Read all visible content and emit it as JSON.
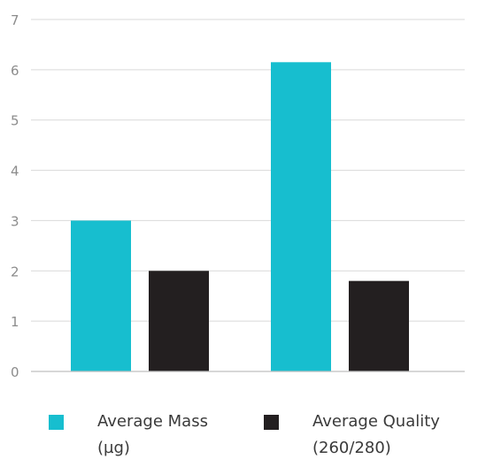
{
  "chart_data": {
    "type": "bar",
    "categories": [
      "",
      ""
    ],
    "series": [
      {
        "name_line1": "Average Mass",
        "name_line2": "(µg)",
        "color": "#17becf",
        "values": [
          3.0,
          6.15
        ]
      },
      {
        "name_line1": "Average Quality",
        "name_line2": "(260/280)",
        "color": "#231f20",
        "values": [
          2.0,
          1.8
        ]
      }
    ],
    "ylim": [
      0,
      7
    ],
    "yticks": [
      "0",
      "1",
      "2",
      "3",
      "4",
      "5",
      "6",
      "7"
    ],
    "grid": true,
    "legend_position": "bottom"
  }
}
